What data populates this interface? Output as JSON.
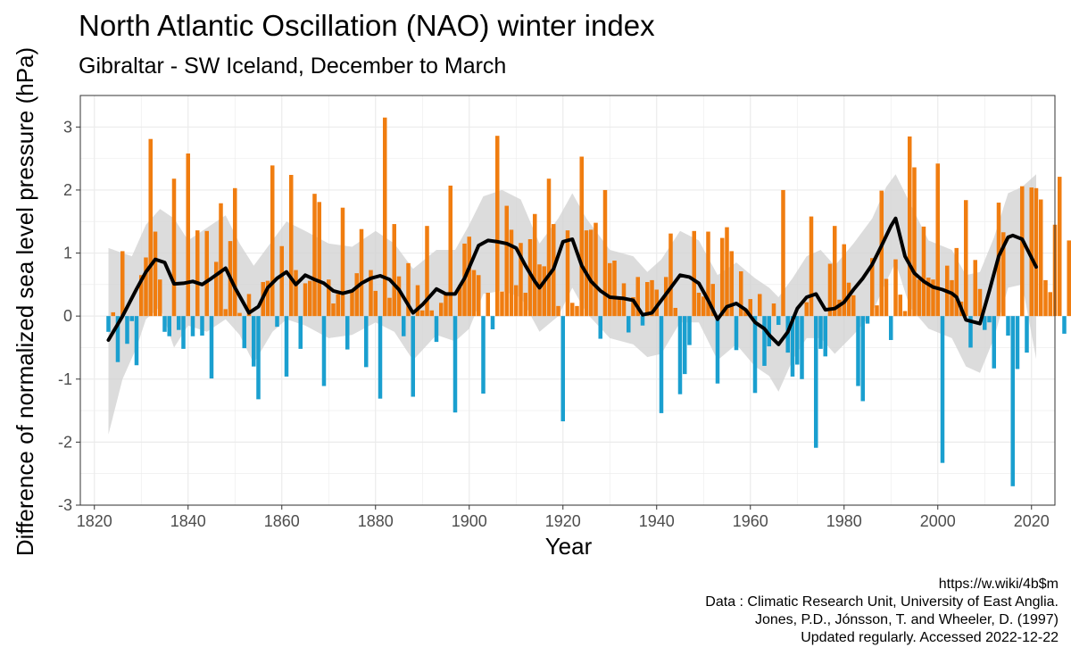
{
  "chart_data": {
    "type": "bar",
    "title": "North Atlantic Oscillation (NAO) winter index",
    "subtitle": "Gibraltar - SW Iceland, December to March",
    "xlabel": "Year",
    "ylabel": "Difference of normalized sea level pressure (hPa)",
    "xlim": [
      1817,
      2025
    ],
    "ylim": [
      -3,
      3.5
    ],
    "x_ticks": [
      1820,
      1840,
      1860,
      1880,
      1900,
      1920,
      1940,
      1960,
      1980,
      2000,
      2020
    ],
    "y_ticks": [
      -3,
      -2,
      -1,
      0,
      1,
      2,
      3
    ],
    "grid": true,
    "colors": {
      "positive": "#f07d10",
      "negative": "#1a9fcf",
      "smooth_line": "#000000",
      "band": "#d3d3d3"
    },
    "start_year": 1823,
    "values": [
      -0.25,
      0.06,
      -0.73,
      1.03,
      -0.44,
      -0.08,
      -0.78,
      0.65,
      0.93,
      2.81,
      1.34,
      0.58,
      -0.25,
      -0.32,
      2.18,
      -0.22,
      -0.52,
      2.58,
      -0.32,
      1.36,
      -0.31,
      1.35,
      -0.99,
      0.86,
      1.79,
      0.11,
      1.19,
      2.03,
      0.05,
      -0.51,
      0.35,
      -0.8,
      -1.32,
      0.54,
      0.56,
      2.39,
      -0.17,
      1.11,
      -0.96,
      2.24,
      0.73,
      -0.52,
      0.52,
      0.56,
      1.94,
      1.81,
      -1.11,
      0.58,
      0.2,
      0.35,
      1.72,
      -0.53,
      0.41,
      0.68,
      1.38,
      -0.81,
      0.73,
      0.4,
      -1.31,
      3.15,
      0.29,
      1.46,
      0.63,
      -0.32,
      0.84,
      -1.28,
      0.49,
      0.09,
      1.43,
      0.09,
      -0.41,
      0.21,
      0.37,
      2.07,
      -1.53,
      0.49,
      1.15,
      1.26,
      0.73,
      0.65,
      -1.23,
      0.37,
      -0.21,
      2.86,
      0.39,
      1.75,
      1.37,
      0.49,
      1.16,
      0.37,
      1.22,
      1.62,
      0.82,
      0.79,
      2.18,
      1.46,
      0.16,
      -1.67,
      1.36,
      0.21,
      0.16,
      2.53,
      1.36,
      1.37,
      1.48,
      -0.36,
      2.0,
      0.84,
      0.88,
      0.29,
      0.52,
      -0.26,
      0.3,
      0.62,
      -0.15,
      0.54,
      0.57,
      0.42,
      -1.54,
      0.62,
      1.31,
      0.13,
      -1.24,
      -0.92,
      -0.46,
      1.35,
      0.37,
      0.31,
      1.34,
      0.51,
      -1.07,
      1.24,
      1.41,
      1.03,
      -0.54,
      0.71,
      0.11,
      0.27,
      -1.22,
      0.35,
      -0.79,
      -0.48,
      0.2,
      -0.14,
      2.0,
      -0.58,
      -0.96,
      -0.77,
      -1.0,
      0.22,
      1.58,
      -2.09,
      -0.52,
      -0.64,
      0.83,
      1.43,
      0.26,
      1.14,
      0.53,
      0.33,
      -1.11,
      -1.35,
      -0.12,
      0.92,
      0.17,
      1.99,
      0.59,
      -0.38,
      0.9,
      0.34,
      0.08,
      2.85,
      2.36,
      0.58,
      1.42,
      0.61,
      0.58,
      2.42,
      -2.33,
      0.8,
      0.57,
      1.08,
      0.23,
      1.84,
      -0.5,
      0.89,
      0.43,
      -0.22,
      -0.1,
      -0.83,
      1.8,
      1.33,
      -0.31,
      -2.7,
      -0.84,
      2.06,
      -0.58,
      2.04,
      2.03,
      1.85,
      0.57,
      0.38,
      1.45,
      2.21,
      -0.28,
      1.2
    ],
    "smooth": [
      [
        1823,
        -0.38
      ],
      [
        1826,
        0.0
      ],
      [
        1829,
        0.43
      ],
      [
        1831,
        0.7
      ],
      [
        1833,
        0.9
      ],
      [
        1835,
        0.85
      ],
      [
        1837,
        0.51
      ],
      [
        1839,
        0.52
      ],
      [
        1841,
        0.55
      ],
      [
        1843,
        0.5
      ],
      [
        1845,
        0.6
      ],
      [
        1848,
        0.76
      ],
      [
        1850,
        0.45
      ],
      [
        1853,
        0.05
      ],
      [
        1855,
        0.15
      ],
      [
        1857,
        0.45
      ],
      [
        1859,
        0.6
      ],
      [
        1861,
        0.7
      ],
      [
        1863,
        0.5
      ],
      [
        1865,
        0.65
      ],
      [
        1867,
        0.58
      ],
      [
        1869,
        0.52
      ],
      [
        1871,
        0.4
      ],
      [
        1873,
        0.36
      ],
      [
        1875,
        0.4
      ],
      [
        1877,
        0.52
      ],
      [
        1879,
        0.6
      ],
      [
        1881,
        0.64
      ],
      [
        1883,
        0.58
      ],
      [
        1885,
        0.42
      ],
      [
        1888,
        0.05
      ],
      [
        1890,
        0.18
      ],
      [
        1893,
        0.43
      ],
      [
        1895,
        0.35
      ],
      [
        1897,
        0.35
      ],
      [
        1899,
        0.6
      ],
      [
        1902,
        1.12
      ],
      [
        1904,
        1.2
      ],
      [
        1906,
        1.18
      ],
      [
        1908,
        1.15
      ],
      [
        1910,
        1.08
      ],
      [
        1912,
        0.8
      ],
      [
        1914,
        0.55
      ],
      [
        1915,
        0.45
      ],
      [
        1918,
        0.75
      ],
      [
        1920,
        1.18
      ],
      [
        1922,
        1.22
      ],
      [
        1924,
        0.8
      ],
      [
        1926,
        0.55
      ],
      [
        1928,
        0.4
      ],
      [
        1930,
        0.3
      ],
      [
        1933,
        0.28
      ],
      [
        1935,
        0.25
      ],
      [
        1937,
        0.02
      ],
      [
        1939,
        0.05
      ],
      [
        1941,
        0.25
      ],
      [
        1943,
        0.45
      ],
      [
        1945,
        0.65
      ],
      [
        1947,
        0.62
      ],
      [
        1949,
        0.52
      ],
      [
        1951,
        0.25
      ],
      [
        1953,
        -0.05
      ],
      [
        1955,
        0.15
      ],
      [
        1957,
        0.2
      ],
      [
        1959,
        0.1
      ],
      [
        1961,
        -0.1
      ],
      [
        1963,
        -0.2
      ],
      [
        1964,
        -0.3
      ],
      [
        1966,
        -0.45
      ],
      [
        1968,
        -0.25
      ],
      [
        1970,
        0.12
      ],
      [
        1972,
        0.3
      ],
      [
        1974,
        0.35
      ],
      [
        1976,
        0.1
      ],
      [
        1978,
        0.12
      ],
      [
        1980,
        0.22
      ],
      [
        1982,
        0.42
      ],
      [
        1984,
        0.6
      ],
      [
        1986,
        0.82
      ],
      [
        1988,
        1.12
      ],
      [
        1990,
        1.43
      ],
      [
        1991,
        1.55
      ],
      [
        1993,
        0.95
      ],
      [
        1995,
        0.68
      ],
      [
        1997,
        0.55
      ],
      [
        1999,
        0.46
      ],
      [
        2001,
        0.42
      ],
      [
        2003,
        0.36
      ],
      [
        2004,
        0.3
      ],
      [
        2006,
        -0.06
      ],
      [
        2009,
        -0.12
      ],
      [
        2011,
        0.4
      ],
      [
        2013,
        0.95
      ],
      [
        2015,
        1.25
      ],
      [
        2016,
        1.28
      ],
      [
        2018,
        1.22
      ],
      [
        2021,
        0.78
      ]
    ],
    "band_upper": [
      [
        1823,
        1.08
      ],
      [
        1828,
        0.95
      ],
      [
        1831,
        1.45
      ],
      [
        1834,
        1.7
      ],
      [
        1837,
        1.55
      ],
      [
        1840,
        1.2
      ],
      [
        1845,
        1.45
      ],
      [
        1848,
        1.6
      ],
      [
        1851,
        1.15
      ],
      [
        1854,
        0.8
      ],
      [
        1858,
        1.2
      ],
      [
        1861,
        1.5
      ],
      [
        1865,
        1.35
      ],
      [
        1870,
        1.15
      ],
      [
        1875,
        1.1
      ],
      [
        1880,
        1.35
      ],
      [
        1884,
        1.15
      ],
      [
        1888,
        0.75
      ],
      [
        1893,
        1.05
      ],
      [
        1897,
        1.05
      ],
      [
        1900,
        1.45
      ],
      [
        1903,
        1.9
      ],
      [
        1907,
        2.0
      ],
      [
        1911,
        1.85
      ],
      [
        1915,
        1.15
      ],
      [
        1919,
        1.55
      ],
      [
        1922,
        1.95
      ],
      [
        1925,
        1.55
      ],
      [
        1930,
        1.05
      ],
      [
        1935,
        0.95
      ],
      [
        1938,
        0.7
      ],
      [
        1941,
        0.9
      ],
      [
        1945,
        1.35
      ],
      [
        1949,
        1.2
      ],
      [
        1953,
        0.65
      ],
      [
        1957,
        0.85
      ],
      [
        1961,
        0.6
      ],
      [
        1964,
        0.45
      ],
      [
        1966,
        0.3
      ],
      [
        1969,
        0.6
      ],
      [
        1972,
        0.95
      ],
      [
        1975,
        1.05
      ],
      [
        1978,
        0.8
      ],
      [
        1982,
        1.15
      ],
      [
        1986,
        1.55
      ],
      [
        1989,
        2.05
      ],
      [
        1991,
        2.25
      ],
      [
        1994,
        1.8
      ],
      [
        1998,
        1.2
      ],
      [
        2003,
        1.05
      ],
      [
        2006,
        0.65
      ],
      [
        2009,
        0.7
      ],
      [
        2012,
        1.25
      ],
      [
        2015,
        1.95
      ],
      [
        2018,
        2.05
      ],
      [
        2021,
        2.25
      ]
    ],
    "band_lower": [
      [
        1823,
        -1.88
      ],
      [
        1826,
        -1.0
      ],
      [
        1829,
        -0.5
      ],
      [
        1831,
        -0.05
      ],
      [
        1834,
        0.15
      ],
      [
        1837,
        -0.5
      ],
      [
        1840,
        -0.15
      ],
      [
        1844,
        -0.25
      ],
      [
        1848,
        -0.05
      ],
      [
        1851,
        -0.3
      ],
      [
        1854,
        -0.75
      ],
      [
        1858,
        -0.25
      ],
      [
        1861,
        -0.05
      ],
      [
        1865,
        -0.15
      ],
      [
        1870,
        -0.35
      ],
      [
        1875,
        -0.3
      ],
      [
        1880,
        -0.1
      ],
      [
        1884,
        -0.25
      ],
      [
        1888,
        -0.7
      ],
      [
        1893,
        -0.3
      ],
      [
        1897,
        -0.4
      ],
      [
        1900,
        -0.2
      ],
      [
        1903,
        0.35
      ],
      [
        1907,
        0.4
      ],
      [
        1911,
        0.3
      ],
      [
        1915,
        -0.25
      ],
      [
        1919,
        0.0
      ],
      [
        1922,
        0.45
      ],
      [
        1925,
        0.05
      ],
      [
        1930,
        -0.35
      ],
      [
        1935,
        -0.45
      ],
      [
        1938,
        -0.65
      ],
      [
        1941,
        -0.6
      ],
      [
        1945,
        -0.1
      ],
      [
        1949,
        -0.1
      ],
      [
        1953,
        -0.7
      ],
      [
        1957,
        -0.45
      ],
      [
        1961,
        -0.8
      ],
      [
        1964,
        -0.95
      ],
      [
        1966,
        -1.2
      ],
      [
        1969,
        -0.7
      ],
      [
        1972,
        -0.35
      ],
      [
        1975,
        -0.35
      ],
      [
        1978,
        -0.6
      ],
      [
        1982,
        -0.3
      ],
      [
        1986,
        0.05
      ],
      [
        1989,
        0.55
      ],
      [
        1991,
        0.85
      ],
      [
        1994,
        0.15
      ],
      [
        1998,
        -0.2
      ],
      [
        2003,
        -0.35
      ],
      [
        2006,
        -0.8
      ],
      [
        2009,
        -0.9
      ],
      [
        2012,
        -0.35
      ],
      [
        2015,
        0.45
      ],
      [
        2018,
        0.5
      ],
      [
        2021,
        -0.68
      ]
    ]
  },
  "credits": [
    "https://w.wiki/4b$m",
    "Data : Climatic Research Unit, University of East Anglia.",
    "Jones, P.D., Jónsson, T. and Wheeler, D. (1997)",
    "Updated regularly. Accessed 2022-12-22"
  ]
}
